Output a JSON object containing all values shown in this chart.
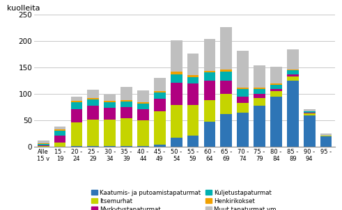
{
  "categories": [
    "Alle\n15 v",
    "15 -\n19",
    "20 -\n24",
    "25 -\n29",
    "30 -\n34",
    "35 -\n39",
    "40 -\n44",
    "45 -\n49",
    "50 -\n54",
    "55 -\n59",
    "60 -\n64",
    "65 -\n69",
    "70 -\n74",
    "75 -\n79",
    "80 -\n84",
    "85 -\n89",
    "90 -\n94",
    "95 -"
  ],
  "series": {
    "Kaatumis- ja putoamistapaturmat": [
      0,
      1,
      2,
      2,
      2,
      2,
      2,
      5,
      18,
      22,
      48,
      62,
      65,
      78,
      95,
      125,
      60,
      20
    ],
    "Itsemurhat": [
      2,
      8,
      45,
      50,
      50,
      52,
      48,
      62,
      62,
      58,
      40,
      38,
      18,
      14,
      10,
      8,
      3,
      1
    ],
    "Myrkytystapaturmat": [
      1,
      12,
      25,
      26,
      22,
      22,
      22,
      24,
      42,
      40,
      38,
      25,
      12,
      8,
      5,
      4,
      2,
      0
    ],
    "Kuljetustapaturmat": [
      3,
      10,
      12,
      12,
      10,
      10,
      10,
      12,
      15,
      12,
      15,
      18,
      15,
      10,
      8,
      8,
      2,
      1
    ],
    "Henkirikokset": [
      1,
      2,
      3,
      3,
      3,
      3,
      3,
      3,
      5,
      4,
      3,
      3,
      2,
      2,
      2,
      2,
      1,
      0
    ],
    "Muut tapaturmat ym.": [
      5,
      5,
      8,
      15,
      12,
      25,
      22,
      25,
      60,
      40,
      60,
      80,
      70,
      42,
      32,
      38,
      3,
      3
    ]
  },
  "colors": {
    "Kaatumis- ja putoamistapaturmat": "#2e75b6",
    "Itsemurhat": "#c5d400",
    "Myrkytystapaturmat": "#b00080",
    "Kuljetustapaturmat": "#00b0b0",
    "Henkirikokset": "#f0a000",
    "Muut tapaturmat ym.": "#bfbfbf"
  },
  "ylabel": "kuolleita",
  "ylim": [
    0,
    250
  ],
  "yticks": [
    0,
    50,
    100,
    150,
    200,
    250
  ],
  "background_color": "#ffffff",
  "grid_color": "#c8c8c8",
  "legend_labels_col1": [
    "Kaatumis- ja putoamistapaturmat",
    "Myrkytystapaturmat",
    "Henkirikokset"
  ],
  "legend_labels_col2": [
    "Itsemurhat",
    "Kuljetustapaturmat",
    "Muut tapaturmat ym."
  ]
}
